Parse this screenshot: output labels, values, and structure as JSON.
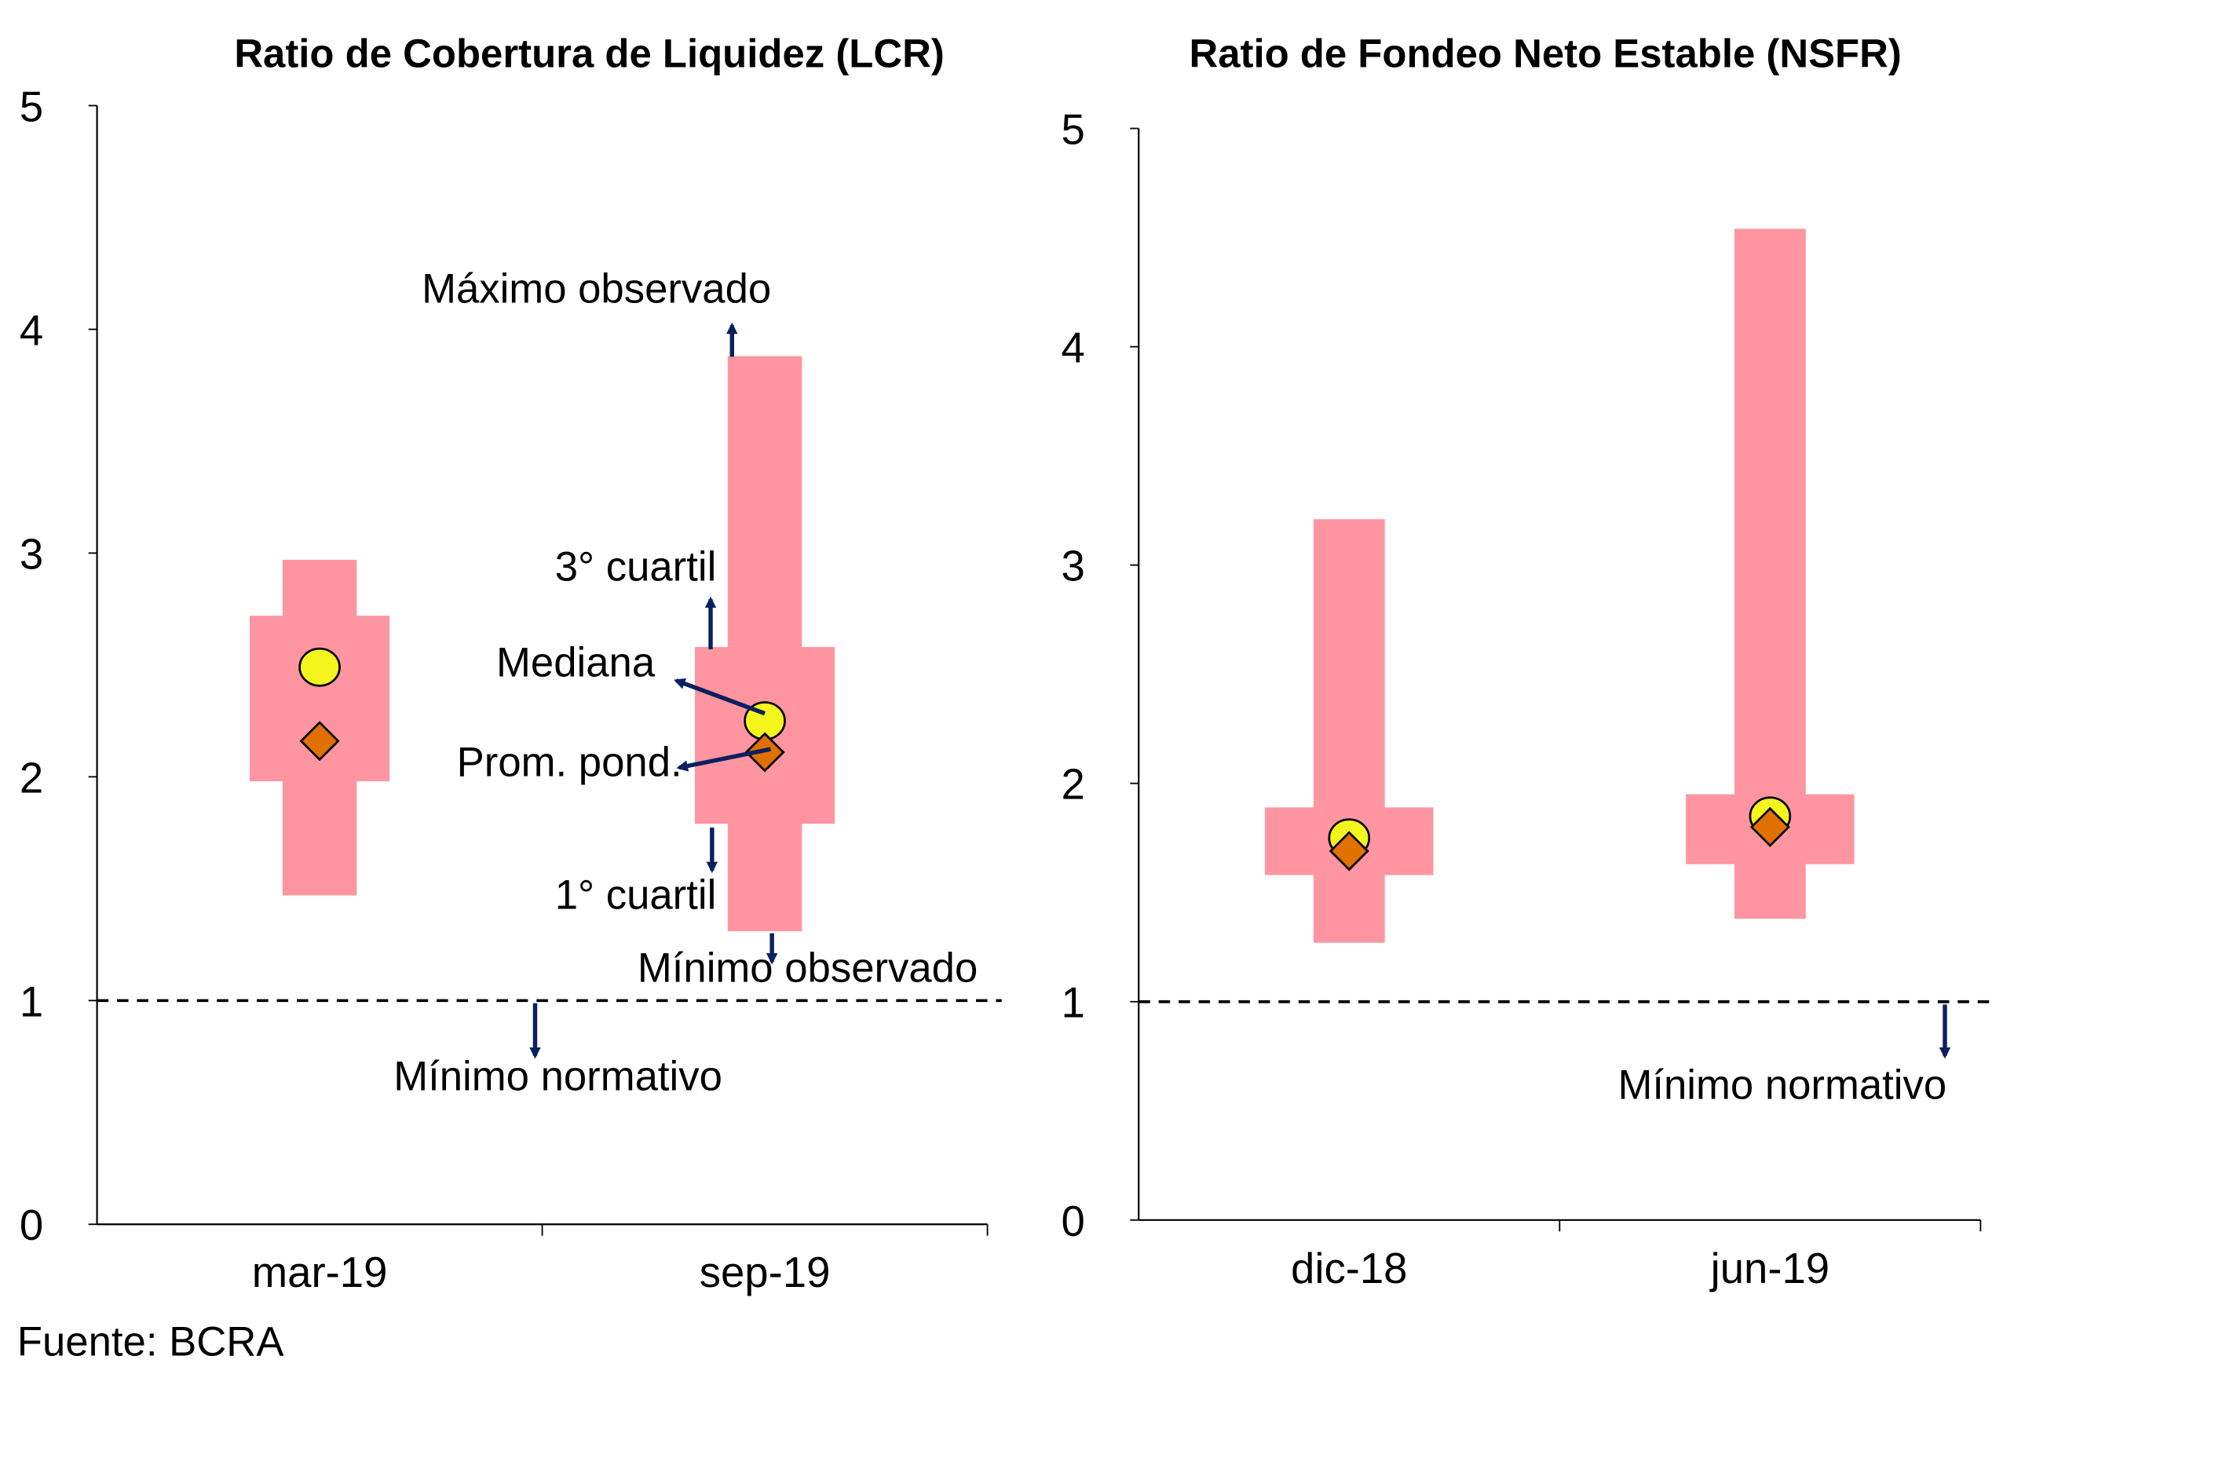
{
  "source": "Fuente: BCRA",
  "colors": {
    "box": "#FF95A0",
    "median": "#F5F51E",
    "mean": "#E07000",
    "arrow": "#0C2060",
    "minimum_line": "#000000"
  },
  "chart_data": [
    {
      "type": "box",
      "title": "Ratio de Cobertura de Liquidez (LCR)",
      "ylim": [
        0,
        5
      ],
      "yticks": [
        "0",
        "1",
        "2",
        "3",
        "4",
        "5"
      ],
      "categories": [
        "mar-19",
        "sep-19"
      ],
      "series": {
        "min": [
          1.47,
          1.31
        ],
        "q1": [
          1.98,
          1.79
        ],
        "median": [
          2.49,
          2.25
        ],
        "weighted_mean": [
          2.16,
          2.11
        ],
        "q3": [
          2.72,
          2.58
        ],
        "max": [
          2.97,
          3.88
        ]
      },
      "regulatory_minimum": 1,
      "annotations": {
        "max": "Máximo observado",
        "q3": "3° cuartil",
        "median": "Mediana",
        "mean": "Prom. pond.",
        "q1": "1° cuartil",
        "min": "Mínimo observado",
        "regulatory_minimum": "Mínimo normativo"
      }
    },
    {
      "type": "box",
      "title": "Ratio de Fondeo Neto Estable (NSFR)",
      "ylim": [
        0,
        5
      ],
      "yticks": [
        "0",
        "1",
        "2",
        "3",
        "4",
        "5"
      ],
      "categories": [
        "dic-18",
        "jun-19"
      ],
      "series": {
        "min": [
          1.27,
          1.38
        ],
        "q1": [
          1.58,
          1.63
        ],
        "median": [
          1.75,
          1.85
        ],
        "weighted_mean": [
          1.69,
          1.8
        ],
        "q3": [
          1.89,
          1.95
        ],
        "max": [
          3.21,
          4.54
        ]
      },
      "regulatory_minimum": 1,
      "annotations": {
        "regulatory_minimum": "Mínimo normativo"
      }
    }
  ]
}
